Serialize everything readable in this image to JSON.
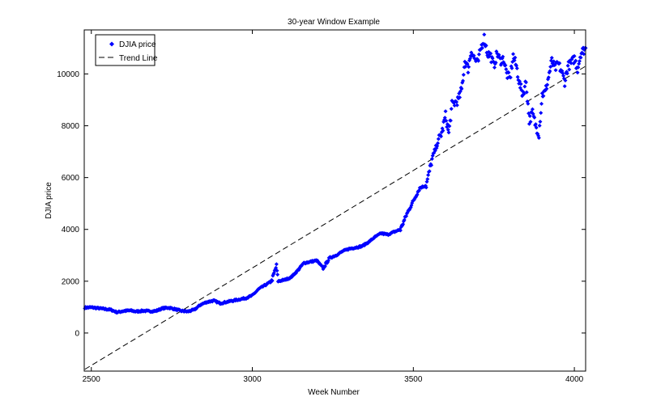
{
  "chart_data": {
    "type": "scatter",
    "title": "30-year Window Example",
    "xlabel": "Week Number",
    "ylabel": "DJIA price",
    "xlim": [
      2478,
      4035
    ],
    "ylim": [
      -1470,
      11700
    ],
    "xticks": [
      2500,
      3000,
      3500,
      4000
    ],
    "yticks": [
      0,
      2000,
      4000,
      6000,
      8000,
      10000
    ],
    "grid": false,
    "legend": {
      "position": "upper left",
      "entries": [
        {
          "label": "DJIA price",
          "marker": "diamond",
          "color": "#0000ff"
        },
        {
          "label": "Trend Line",
          "style": "dashed",
          "color": "#000000"
        }
      ]
    },
    "series": [
      {
        "name": "DJIA price",
        "kind": "scatter",
        "color": "#0000ff",
        "x": [
          2480,
          2500,
          2520,
          2540,
          2560,
          2580,
          2600,
          2620,
          2640,
          2660,
          2680,
          2700,
          2720,
          2740,
          2760,
          2780,
          2800,
          2820,
          2840,
          2860,
          2880,
          2900,
          2920,
          2940,
          2960,
          2980,
          3000,
          3020,
          3040,
          3060,
          3075,
          3080,
          3100,
          3120,
          3140,
          3160,
          3180,
          3200,
          3220,
          3240,
          3260,
          3280,
          3300,
          3320,
          3340,
          3360,
          3380,
          3400,
          3420,
          3440,
          3460,
          3480,
          3500,
          3520,
          3540,
          3560,
          3580,
          3590,
          3600,
          3610,
          3620,
          3640,
          3650,
          3660,
          3670,
          3680,
          3690,
          3700,
          3710,
          3720,
          3730,
          3740,
          3750,
          3760,
          3770,
          3780,
          3790,
          3800,
          3810,
          3820,
          3830,
          3840,
          3850,
          3860,
          3870,
          3880,
          3890,
          3900,
          3910,
          3920,
          3930,
          3940,
          3950,
          3960,
          3970,
          3980,
          3990,
          4000,
          4010,
          4020,
          4035
        ],
        "y": [
          980,
          990,
          960,
          930,
          900,
          800,
          850,
          870,
          830,
          860,
          840,
          850,
          950,
          980,
          920,
          850,
          830,
          900,
          1100,
          1200,
          1250,
          1150,
          1200,
          1250,
          1300,
          1350,
          1450,
          1700,
          1850,
          2000,
          2600,
          2000,
          2050,
          2150,
          2400,
          2700,
          2750,
          2800,
          2500,
          2900,
          3000,
          3150,
          3250,
          3300,
          3350,
          3500,
          3700,
          3850,
          3800,
          3900,
          4000,
          4600,
          5100,
          5600,
          5700,
          6800,
          7500,
          7800,
          8400,
          7700,
          8800,
          9000,
          9400,
          10500,
          10200,
          10900,
          10600,
          10400,
          11000,
          11400,
          10800,
          10700,
          10300,
          10800,
          10500,
          10600,
          10000,
          9800,
          10700,
          10300,
          9600,
          9200,
          9700,
          8200,
          8500,
          8000,
          7700,
          9200,
          9300,
          9900,
          10500,
          10200,
          10400,
          10100,
          9700,
          10300,
          10400,
          10600,
          10200,
          10800,
          11000
        ]
      },
      {
        "name": "Trend Line",
        "kind": "line",
        "style": "dashed",
        "color": "#000000",
        "x": [
          2480,
          4035
        ],
        "y": [
          -1400,
          10300
        ]
      }
    ]
  }
}
